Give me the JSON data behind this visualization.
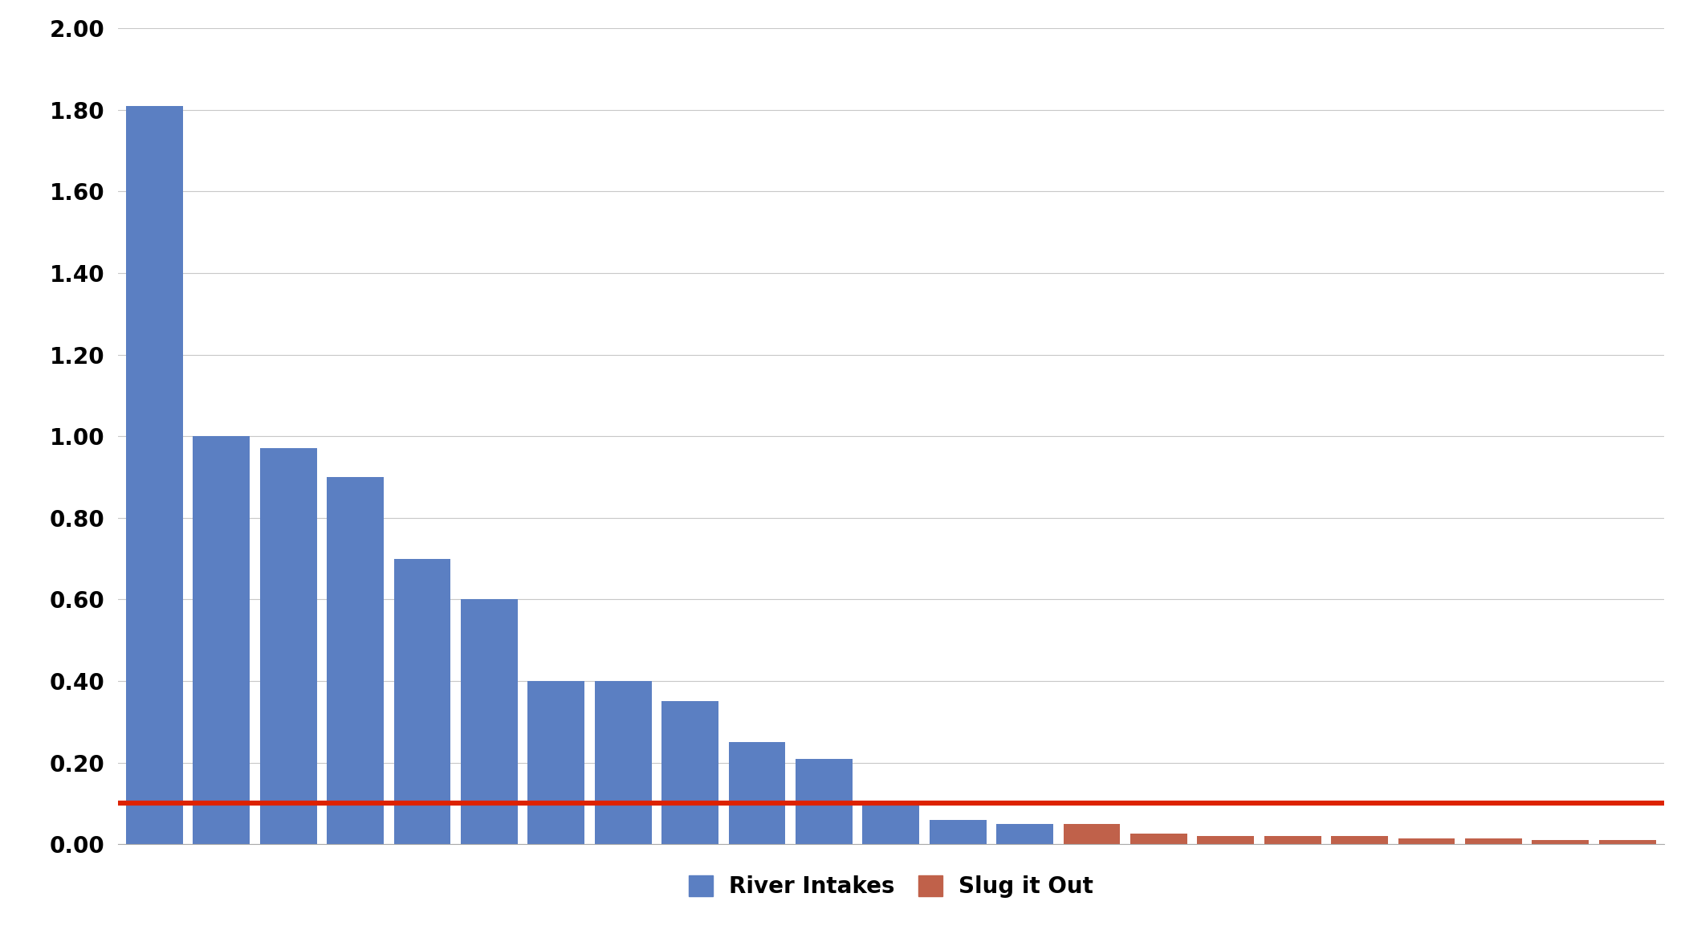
{
  "river_intakes": [
    1.81,
    1.0,
    0.97,
    0.9,
    0.7,
    0.6,
    0.4,
    0.4,
    0.35,
    0.25,
    0.21,
    0.1,
    0.06,
    0.05
  ],
  "slug_it_out": [
    0.05,
    0.025,
    0.02,
    0.02,
    0.02,
    0.015,
    0.015,
    0.01,
    0.01
  ],
  "threshold_line": 0.1,
  "ylim": [
    0.0,
    2.0
  ],
  "yticks": [
    0.0,
    0.2,
    0.4,
    0.6,
    0.8,
    1.0,
    1.2,
    1.4,
    1.6,
    1.8,
    2.0
  ],
  "river_color": "#5B7FC2",
  "slug_color": "#C0614A",
  "threshold_color": "#DD2200",
  "legend_river": "River Intakes",
  "legend_slug": "Slug it Out",
  "background_color": "#FFFFFF",
  "plot_bg_color": "#FFFFFF",
  "grid_color": "#C8C8C8",
  "bar_width": 0.85,
  "threshold_linewidth": 4.5
}
